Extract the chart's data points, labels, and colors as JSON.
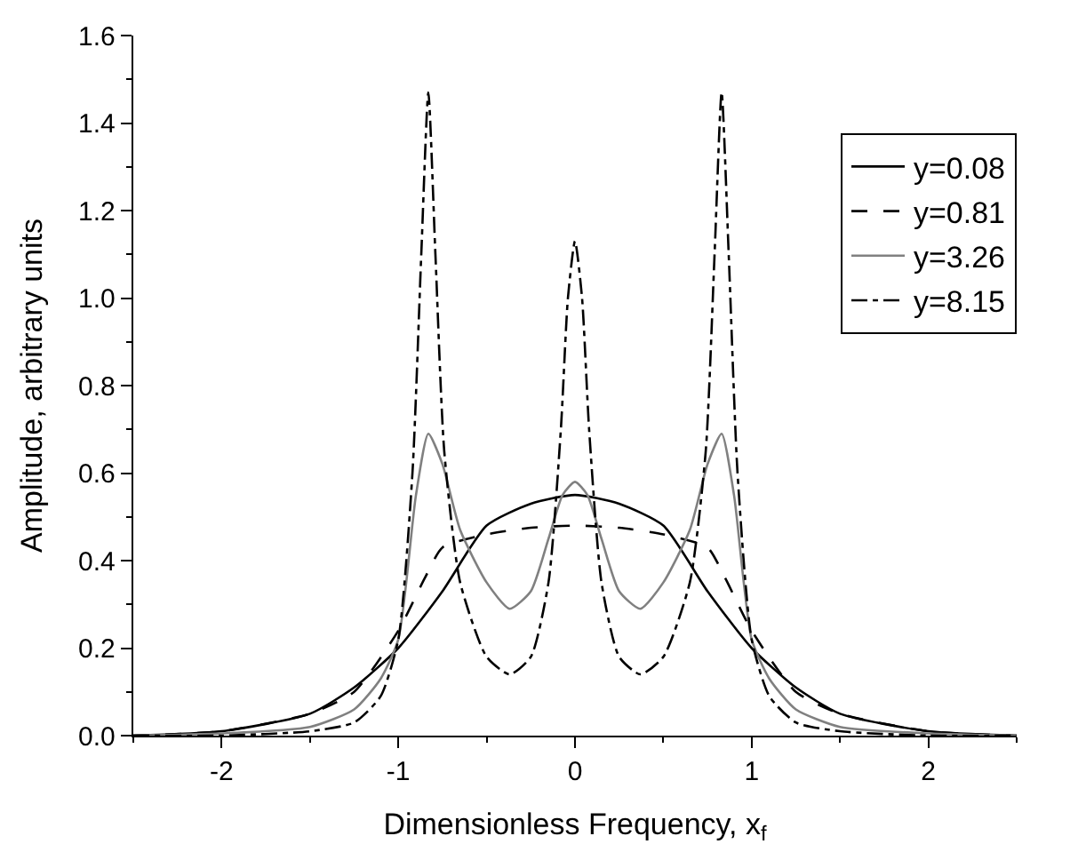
{
  "chart_data": {
    "type": "line",
    "xlabel": "Dimensionless Frequency, x$_{f}$",
    "ylabel": "Amplitude, arbitrary units",
    "xlim": [
      -2.5,
      2.5
    ],
    "xticks": [
      -2,
      -1,
      0,
      1,
      2
    ],
    "ylim": [
      0,
      1.6
    ],
    "yticks": [
      {
        "value": 0,
        "label": "0.0"
      },
      {
        "value": 0.2,
        "label": "0.2"
      },
      {
        "value": 0.4,
        "label": "0.4"
      },
      {
        "value": 0.6,
        "label": "0.6"
      },
      {
        "value": 0.8,
        "label": "0.8"
      },
      {
        "value": 1,
        "label": "1.0"
      },
      {
        "value": 1.2,
        "label": "1.2"
      },
      {
        "value": 1.4,
        "label": "1.4"
      },
      {
        "value": 1.6,
        "label": "1.6"
      }
    ],
    "legend": "top right",
    "marker": "none",
    "series": [
      {
        "name": "y=0.08",
        "color": "#000000",
        "line_style": "solid",
        "x": [
          -2.5,
          -2,
          -1.5,
          -1.25,
          -1,
          -0.75,
          -0.5,
          -0.25,
          0,
          0.25,
          0.5,
          0.75,
          1,
          1.25,
          1.5,
          2,
          2.5
        ],
        "values": [
          0,
          0.01,
          0.05,
          0.11,
          0.2,
          0.33,
          0.48,
          0.53,
          0.55,
          0.53,
          0.48,
          0.33,
          0.2,
          0.11,
          0.05,
          0.01,
          0
        ]
      },
      {
        "name": "y=0.81",
        "color": "#000000",
        "line_style": "dashed",
        "x": [
          -2.5,
          -2,
          -1.5,
          -1.25,
          -1,
          -0.85,
          -0.75,
          -0.5,
          -0.25,
          0,
          0.25,
          0.5,
          0.75,
          0.85,
          1,
          1.25,
          1.5,
          2,
          2.5
        ],
        "values": [
          0,
          0.01,
          0.05,
          0.1,
          0.24,
          0.36,
          0.43,
          0.46,
          0.475,
          0.48,
          0.475,
          0.46,
          0.43,
          0.36,
          0.24,
          0.1,
          0.05,
          0.01,
          0
        ]
      },
      {
        "name": "y=3.26",
        "color": "#808080",
        "line_style": "solid",
        "x": [
          -2.5,
          -2,
          -1.5,
          -1.25,
          -1.1,
          -1,
          -0.9,
          -0.83,
          -0.75,
          -0.65,
          -0.5,
          -0.37,
          -0.25,
          -0.15,
          -0.07,
          0,
          0.07,
          0.15,
          0.25,
          0.37,
          0.5,
          0.65,
          0.75,
          0.83,
          0.9,
          1,
          1.1,
          1.25,
          1.5,
          2,
          2.5
        ],
        "values": [
          0,
          0.005,
          0.02,
          0.06,
          0.13,
          0.22,
          0.55,
          0.69,
          0.62,
          0.47,
          0.35,
          0.29,
          0.33,
          0.45,
          0.55,
          0.58,
          0.55,
          0.45,
          0.33,
          0.29,
          0.35,
          0.47,
          0.62,
          0.69,
          0.55,
          0.22,
          0.13,
          0.06,
          0.02,
          0.005,
          0
        ]
      },
      {
        "name": "y=8.15",
        "color": "#000000",
        "line_style": "dashdot",
        "x": [
          -2.5,
          -2,
          -1.5,
          -1.25,
          -1.1,
          -1,
          -0.92,
          -0.87,
          -0.83,
          -0.79,
          -0.74,
          -0.65,
          -0.5,
          -0.37,
          -0.25,
          -0.15,
          -0.08,
          -0.04,
          0,
          0.04,
          0.08,
          0.15,
          0.25,
          0.37,
          0.5,
          0.65,
          0.74,
          0.79,
          0.83,
          0.87,
          0.92,
          1,
          1.1,
          1.25,
          1.5,
          2,
          2.5
        ],
        "values": [
          0,
          0,
          0.01,
          0.03,
          0.09,
          0.22,
          0.6,
          1.1,
          1.47,
          1.1,
          0.65,
          0.35,
          0.18,
          0.14,
          0.18,
          0.35,
          0.7,
          1.0,
          1.13,
          1.0,
          0.7,
          0.35,
          0.18,
          0.14,
          0.18,
          0.35,
          0.65,
          1.1,
          1.47,
          1.1,
          0.6,
          0.22,
          0.09,
          0.03,
          0.01,
          0,
          0
        ]
      }
    ]
  }
}
